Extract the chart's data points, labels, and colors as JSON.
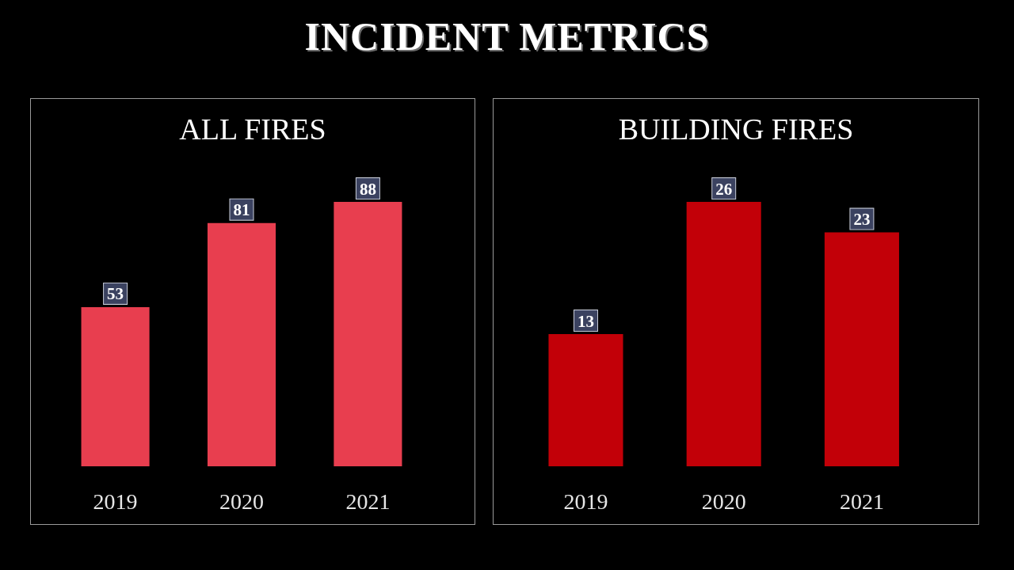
{
  "chart_data": [
    {
      "type": "other",
      "title": "INCIDENT METRICS"
    },
    {
      "type": "bar",
      "title": "ALL FIRES",
      "categories": [
        "2019",
        "2020",
        "2021"
      ],
      "values": [
        53,
        81,
        88
      ],
      "color": "#e83e4f",
      "data_labels": true
    },
    {
      "type": "bar",
      "title": "BUILDING FIRES",
      "categories": [
        "2019",
        "2020",
        "2021"
      ],
      "values": [
        13,
        26,
        23
      ],
      "color": "#c20008",
      "data_labels": true
    }
  ]
}
